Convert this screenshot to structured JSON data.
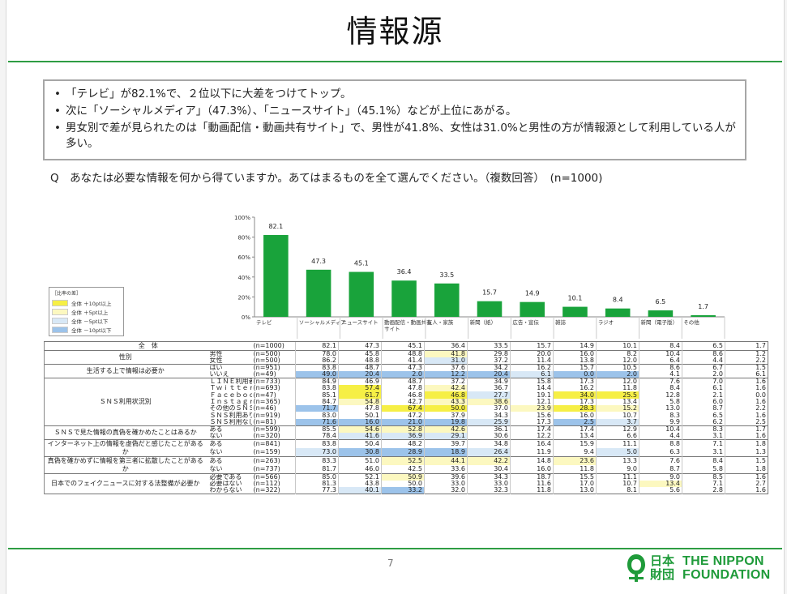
{
  "title": "情報源",
  "summary": [
    "「テレビ」が82.1%で、２位以下に大差をつけてトップ。",
    "次に「ソーシャルメディア」（47.3%）、「ニュースサイト」（45.1%）などが上位にあがる。",
    "男女別で差が見られたのは「動画配信・動画共有サイト」で、男性が41.8%、女性は31.0%と男性の方が情報源として利用している人が多い。"
  ],
  "question": "Q　あなたは必要な情報を何から得ていますか。あてはまるものを全て選んでください。（複数回答）　(n=1000)",
  "legend": {
    "title": "［比率の差］",
    "items": [
      {
        "label": "全体 ＋10pt以上",
        "color": "#f6ef45"
      },
      {
        "label": "全体 ＋5pt以上",
        "color": "#fcf8c0"
      },
      {
        "label": "全体 －5pt以下",
        "color": "#d8e8f6"
      },
      {
        "label": "全体 －10pt以下",
        "color": "#9cc3ea"
      }
    ]
  },
  "chart_data": {
    "type": "bar",
    "categories": [
      "テレビ",
      "ソーシャルメディア",
      "ニュースサイト",
      "動画配信・動画共有サイト",
      "友人・家族",
      "新聞（紙）",
      "広告・宣伝",
      "雑誌",
      "ラジオ",
      "新聞（電子版）",
      "その他"
    ],
    "values": [
      82.1,
      47.3,
      45.1,
      36.4,
      33.5,
      15.7,
      14.9,
      10.1,
      8.4,
      6.5,
      1.7
    ],
    "yticks": [
      "100%",
      "80%",
      "60%",
      "40%",
      "20%",
      "0%"
    ],
    "ylim": [
      0,
      100
    ],
    "bar_color": "#19a33b",
    "grid": false
  },
  "table": {
    "rows": [
      {
        "group": "全　体",
        "sub": "",
        "n": "(n=1000)",
        "v": [
          "82.1",
          "47.3",
          "45.1",
          "36.4",
          "33.5",
          "15.7",
          "14.9",
          "10.1",
          "8.4",
          "6.5",
          "1.7"
        ],
        "h": [
          0,
          0,
          0,
          0,
          0,
          0,
          0,
          0,
          0,
          0,
          0
        ]
      },
      {
        "group": "性別",
        "sub": "男性",
        "n": "(n=500)",
        "v": [
          "78.0",
          "45.8",
          "48.8",
          "41.8",
          "29.8",
          "20.0",
          "16.0",
          "8.2",
          "10.4",
          "8.6",
          "1.2"
        ],
        "h": [
          0,
          0,
          0,
          2,
          0,
          0,
          0,
          0,
          0,
          0,
          0
        ]
      },
      {
        "group": "",
        "sub": "女性",
        "n": "(n=500)",
        "v": [
          "86.2",
          "48.8",
          "41.4",
          "31.0",
          "37.2",
          "11.4",
          "13.8",
          "12.0",
          "6.4",
          "4.4",
          "2.2"
        ],
        "h": [
          0,
          0,
          0,
          3,
          0,
          0,
          0,
          0,
          0,
          0,
          0
        ]
      },
      {
        "group": "生活する上で情報は必要か",
        "sub": "はい",
        "n": "(n=951)",
        "v": [
          "83.8",
          "48.7",
          "47.3",
          "37.6",
          "34.2",
          "16.2",
          "15.7",
          "10.5",
          "8.6",
          "6.7",
          "1.5"
        ],
        "h": [
          0,
          0,
          0,
          0,
          0,
          0,
          0,
          0,
          0,
          0,
          0
        ]
      },
      {
        "group": "",
        "sub": "いいえ",
        "n": "(n=49)",
        "v": [
          "49.0",
          "20.4",
          "2.0",
          "12.2",
          "20.4",
          "6.1",
          "0.0",
          "2.0",
          "4.1",
          "2.0",
          "6.1"
        ],
        "h": [
          4,
          4,
          4,
          4,
          4,
          3,
          4,
          4,
          0,
          0,
          0
        ]
      },
      {
        "group": "ＳＮＳ利用状況別",
        "sub": "ＬＩＮＥ利用者",
        "n": "(n=733)",
        "v": [
          "84.9",
          "46.9",
          "48.7",
          "37.2",
          "34.9",
          "15.8",
          "17.3",
          "12.0",
          "7.6",
          "7.0",
          "1.6"
        ],
        "h": [
          0,
          0,
          0,
          0,
          0,
          0,
          0,
          0,
          0,
          0,
          0
        ]
      },
      {
        "group": "",
        "sub": "Ｔｗｉｔｔｅｒ利用者",
        "n": "(n=693)",
        "v": [
          "83.8",
          "57.4",
          "47.8",
          "42.4",
          "36.7",
          "14.4",
          "16.2",
          "11.8",
          "8.4",
          "6.1",
          "1.6"
        ],
        "h": [
          0,
          1,
          0,
          2,
          0,
          0,
          0,
          0,
          0,
          0,
          0
        ]
      },
      {
        "group": "",
        "sub": "Ｆａｃｅｂｏｏｋ利用者",
        "n": "(n=47)",
        "v": [
          "85.1",
          "61.7",
          "46.8",
          "46.8",
          "27.7",
          "19.1",
          "34.0",
          "25.5",
          "12.8",
          "2.1",
          "0.0"
        ],
        "h": [
          0,
          1,
          0,
          1,
          3,
          0,
          1,
          1,
          0,
          0,
          0
        ]
      },
      {
        "group": "",
        "sub": "Ｉｎｓｔａｇｒａｍ利用者",
        "n": "(n=365)",
        "v": [
          "84.7",
          "54.8",
          "42.7",
          "43.3",
          "38.6",
          "12.1",
          "17.3",
          "13.4",
          "5.8",
          "6.0",
          "1.6"
        ],
        "h": [
          0,
          2,
          0,
          2,
          2,
          0,
          0,
          0,
          0,
          0,
          0
        ]
      },
      {
        "group": "",
        "sub": "その他のＳＮＳ利用者",
        "n": "(n=46)",
        "v": [
          "71.7",
          "47.8",
          "67.4",
          "50.0",
          "37.0",
          "23.9",
          "28.3",
          "15.2",
          "13.0",
          "8.7",
          "2.2"
        ],
        "h": [
          4,
          0,
          1,
          1,
          0,
          2,
          1,
          2,
          0,
          0,
          0
        ]
      },
      {
        "group": "",
        "sub": "ＳＮＳ利用あり",
        "n": "(n=919)",
        "v": [
          "83.0",
          "50.1",
          "47.2",
          "37.9",
          "34.3",
          "15.6",
          "16.0",
          "10.7",
          "8.3",
          "6.5",
          "1.6"
        ],
        "h": [
          0,
          0,
          0,
          0,
          0,
          0,
          0,
          0,
          0,
          0,
          0
        ]
      },
      {
        "group": "",
        "sub": "ＳＮＳ利用なし",
        "n": "(n=81)",
        "v": [
          "71.6",
          "16.0",
          "21.0",
          "19.8",
          "25.9",
          "17.3",
          "2.5",
          "3.7",
          "9.9",
          "6.2",
          "2.5"
        ],
        "h": [
          4,
          4,
          4,
          4,
          3,
          0,
          4,
          3,
          0,
          0,
          0
        ]
      },
      {
        "group": "ＳＮＳで見た情報の真偽を確かめたことはあるか",
        "sub": "ある",
        "n": "(n=599)",
        "v": [
          "85.5",
          "54.6",
          "52.8",
          "42.6",
          "36.1",
          "17.4",
          "17.4",
          "12.9",
          "10.4",
          "8.3",
          "1.7"
        ],
        "h": [
          0,
          2,
          2,
          2,
          0,
          0,
          0,
          0,
          0,
          0,
          0
        ]
      },
      {
        "group": "",
        "sub": "ない",
        "n": "(n=320)",
        "v": [
          "78.4",
          "41.6",
          "36.9",
          "29.1",
          "30.6",
          "12.2",
          "13.4",
          "6.6",
          "4.4",
          "3.1",
          "1.6"
        ],
        "h": [
          0,
          3,
          3,
          3,
          0,
          0,
          0,
          0,
          0,
          0,
          0
        ]
      },
      {
        "group": "インターネット上の情報を虚偽だと感じたことがあるか",
        "sub": "ある",
        "n": "(n=841)",
        "v": [
          "83.8",
          "50.4",
          "48.2",
          "39.7",
          "34.8",
          "16.4",
          "15.9",
          "11.1",
          "8.8",
          "7.1",
          "1.8"
        ],
        "h": [
          0,
          0,
          0,
          0,
          0,
          0,
          0,
          0,
          0,
          0,
          0
        ]
      },
      {
        "group": "",
        "sub": "ない",
        "n": "(n=159)",
        "v": [
          "73.0",
          "30.8",
          "28.9",
          "18.9",
          "26.4",
          "11.9",
          "9.4",
          "5.0",
          "6.3",
          "3.1",
          "1.3"
        ],
        "h": [
          3,
          4,
          4,
          4,
          3,
          0,
          0,
          3,
          0,
          0,
          0
        ]
      },
      {
        "group": "真偽を確かめずに情報を第三者に拡散したことがあるか",
        "sub": "ある",
        "n": "(n=263)",
        "v": [
          "83.3",
          "51.0",
          "52.5",
          "44.1",
          "42.2",
          "14.8",
          "23.6",
          "13.3",
          "7.6",
          "8.4",
          "1.5"
        ],
        "h": [
          0,
          0,
          2,
          2,
          2,
          0,
          2,
          0,
          0,
          0,
          0
        ]
      },
      {
        "group": "",
        "sub": "ない",
        "n": "(n=737)",
        "v": [
          "81.7",
          "46.0",
          "42.5",
          "33.6",
          "30.4",
          "16.0",
          "11.8",
          "9.0",
          "8.7",
          "5.8",
          "1.8"
        ],
        "h": [
          0,
          0,
          0,
          0,
          0,
          0,
          0,
          0,
          0,
          0,
          0
        ]
      },
      {
        "group": "日本でのフェイクニュースに対する法整備が必要か",
        "sub": "必要である",
        "n": "(n=566)",
        "v": [
          "85.0",
          "52.1",
          "50.9",
          "39.6",
          "34.3",
          "18.7",
          "15.5",
          "11.1",
          "9.0",
          "8.5",
          "1.6"
        ],
        "h": [
          0,
          0,
          2,
          0,
          0,
          0,
          0,
          0,
          0,
          0,
          0
        ]
      },
      {
        "group": "",
        "sub": "必要はない",
        "n": "(n=112)",
        "v": [
          "81.3",
          "43.8",
          "50.0",
          "33.0",
          "33.0",
          "11.6",
          "17.0",
          "10.7",
          "13.4",
          "7.1",
          "2.7"
        ],
        "h": [
          0,
          0,
          0,
          0,
          0,
          0,
          0,
          0,
          2,
          0,
          0
        ]
      },
      {
        "group": "",
        "sub": "わからない",
        "n": "(n=322)",
        "v": [
          "77.3",
          "40.1",
          "33.2",
          "32.0",
          "32.3",
          "11.8",
          "13.0",
          "8.1",
          "5.6",
          "2.8",
          "1.6"
        ],
        "h": [
          0,
          3,
          4,
          0,
          0,
          0,
          0,
          0,
          0,
          0,
          0
        ]
      }
    ]
  },
  "footer": {
    "page": "7",
    "logo_jp_top": "日本",
    "logo_jp_bottom": "財団",
    "logo_en_top": "THE NIPPON",
    "logo_en_bottom": "FOUNDATION",
    "brand_color": "#1f9b3a"
  }
}
